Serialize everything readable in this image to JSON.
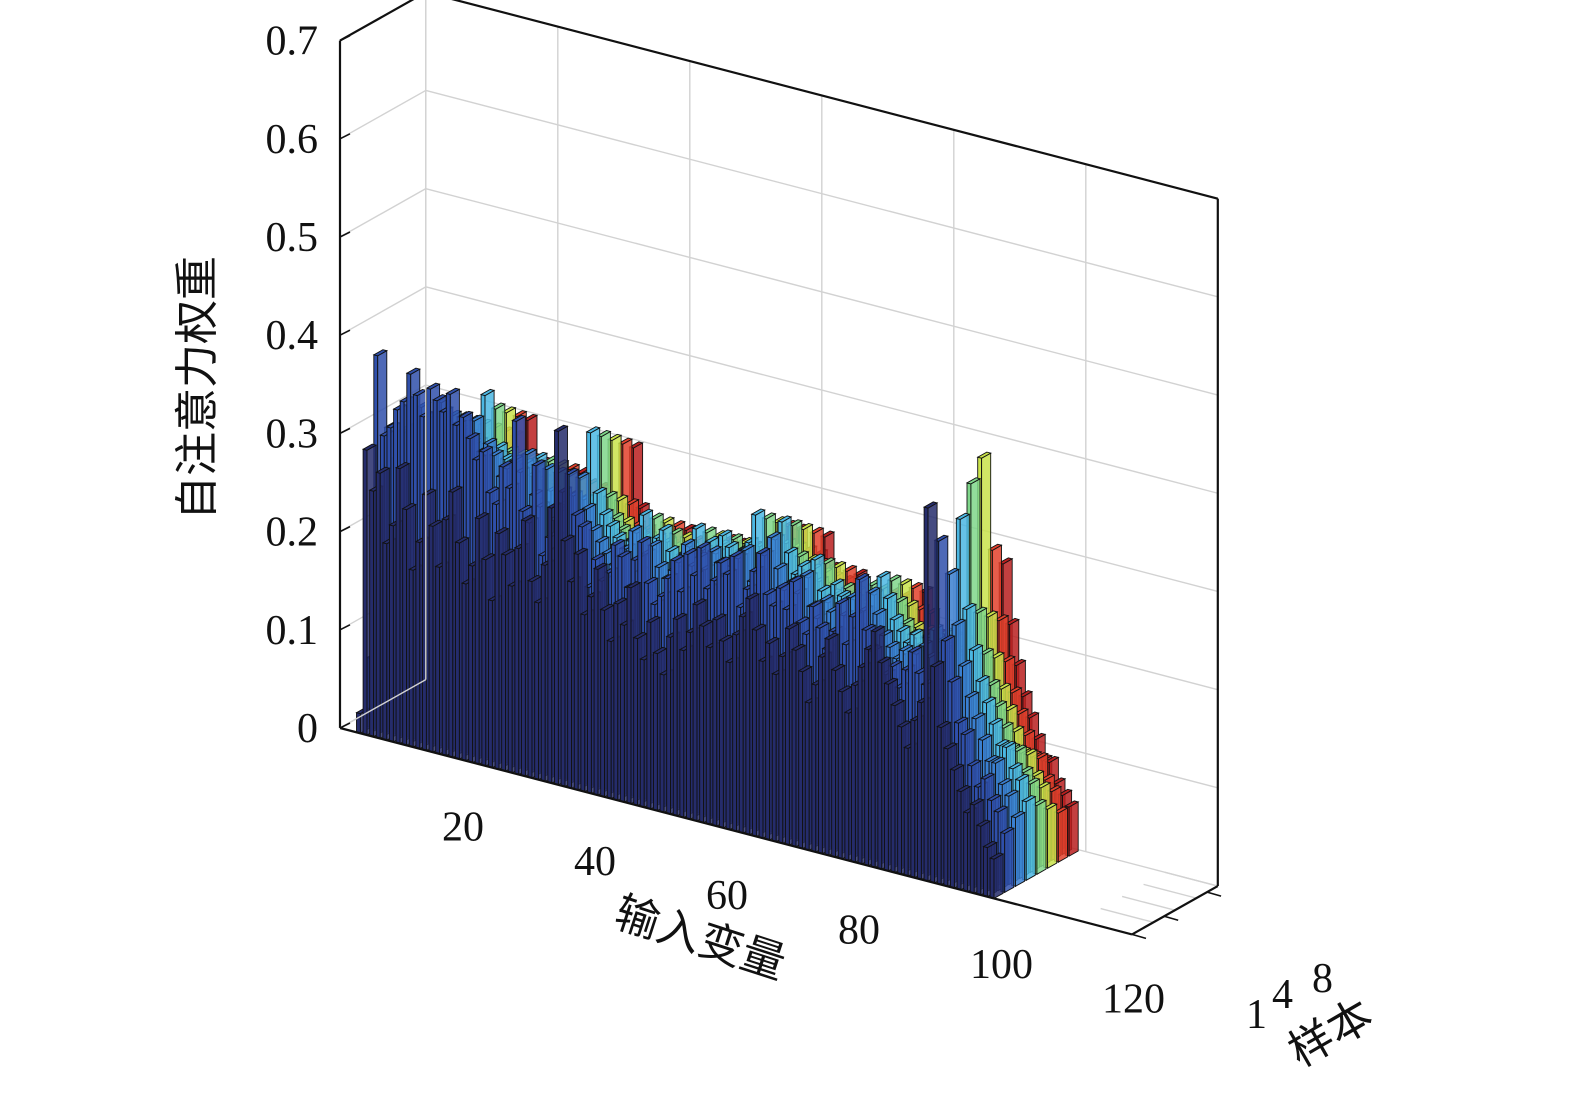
{
  "chart_data": {
    "type": "bar3d",
    "title": "",
    "xlabel": "输入变量",
    "ylabel": "样本",
    "zlabel": "自注意力权重",
    "x_ticks": [
      "20",
      "40",
      "60",
      "80",
      "100",
      "120"
    ],
    "y_ticks": [
      "1",
      "4",
      "8"
    ],
    "z_ticks": [
      "0",
      "0.1",
      "0.2",
      "0.3",
      "0.4",
      "0.5",
      "0.6",
      "0.7"
    ],
    "xlim": [
      0,
      120
    ],
    "ylim": [
      1,
      8
    ],
    "zlim": [
      0,
      0.7
    ],
    "grid": true,
    "colormap": [
      "#252c6b",
      "#2f4faa",
      "#3a7fd0",
      "#4bb7e3",
      "#7fd68a",
      "#c9e24a",
      "#f0a030",
      "#e2412c",
      "#b91f1f"
    ],
    "series": [
      {
        "sample": 1,
        "color": "#252c6b",
        "values": [
          0.02,
          0.29,
          0.25,
          0.27,
          0.2,
          0.22,
          0.28,
          0.24,
          0.18,
          0.21,
          0.26,
          0.23,
          0.19,
          0.24,
          0.27,
          0.22,
          0.18,
          0.2,
          0.25,
          0.21,
          0.17,
          0.24,
          0.22,
          0.19,
          0.23,
          0.26,
          0.2,
          0.18,
          0.22,
          0.28,
          0.36,
          0.25,
          0.21,
          0.24,
          0.18,
          0.2,
          0.23,
          0.19,
          0.16,
          0.2,
          0.18,
          0.22,
          0.17,
          0.15,
          0.19,
          0.16,
          0.14,
          0.18,
          0.2,
          0.17,
          0.19,
          0.22,
          0.2,
          0.18,
          0.21,
          0.19,
          0.17,
          0.2,
          0.22,
          0.24,
          0.21,
          0.18,
          0.2,
          0.17,
          0.19,
          0.22,
          0.2,
          0.18,
          0.15,
          0.17,
          0.2,
          0.22,
          0.19,
          0.17,
          0.15,
          0.18,
          0.2,
          0.22,
          0.24,
          0.21,
          0.19,
          0.17,
          0.15,
          0.13,
          0.16,
          0.18,
          0.38,
          0.22,
          0.16,
          0.14,
          0.12,
          0.1,
          0.08,
          0.09,
          0.07,
          0.05,
          0.04
        ]
      },
      {
        "sample": 2,
        "color": "#2f4faa",
        "values": [
          0.07,
          0.38,
          0.3,
          0.31,
          0.33,
          0.34,
          0.37,
          0.35,
          0.33,
          0.36,
          0.35,
          0.34,
          0.36,
          0.33,
          0.34,
          0.32,
          0.3,
          0.31,
          0.27,
          0.26,
          0.3,
          0.28,
          0.35,
          0.26,
          0.25,
          0.31,
          0.22,
          0.24,
          0.23,
          0.29,
          0.31,
          0.27,
          0.26,
          0.2,
          0.23,
          0.21,
          0.22,
          0.25,
          0.24,
          0.21,
          0.24,
          0.26,
          0.22,
          0.2,
          0.21,
          0.23,
          0.25,
          0.22,
          0.26,
          0.24,
          0.27,
          0.23,
          0.24,
          0.26,
          0.25,
          0.27,
          0.22,
          0.24,
          0.26,
          0.28,
          0.24,
          0.23,
          0.25,
          0.23,
          0.26,
          0.22,
          0.21,
          0.24,
          0.22,
          0.2,
          0.22,
          0.25,
          0.21,
          0.24,
          0.28,
          0.23,
          0.21,
          0.2,
          0.19,
          0.2,
          0.18,
          0.2,
          0.22,
          0.2,
          0.19,
          0.17,
          0.34,
          0.24,
          0.2,
          0.16,
          0.15,
          0.12,
          0.1,
          0.11,
          0.09,
          0.08,
          0.06
        ]
      },
      {
        "sample": 3,
        "color": "#3a7fd0",
        "values": [
          0.05,
          0.3,
          0.27,
          0.3,
          0.3,
          0.31,
          0.33,
          0.32,
          0.3,
          0.34,
          0.31,
          0.32,
          0.33,
          0.31,
          0.33,
          0.3,
          0.31,
          0.3,
          0.28,
          0.29,
          0.3,
          0.29,
          0.31,
          0.27,
          0.26,
          0.3,
          0.25,
          0.26,
          0.24,
          0.28,
          0.3,
          0.27,
          0.25,
          0.24,
          0.23,
          0.22,
          0.23,
          0.24,
          0.26,
          0.22,
          0.24,
          0.25,
          0.23,
          0.22,
          0.23,
          0.24,
          0.26,
          0.24,
          0.25,
          0.24,
          0.26,
          0.25,
          0.24,
          0.25,
          0.26,
          0.27,
          0.24,
          0.25,
          0.27,
          0.29,
          0.26,
          0.24,
          0.25,
          0.24,
          0.26,
          0.23,
          0.22,
          0.24,
          0.23,
          0.21,
          0.23,
          0.25,
          0.22,
          0.24,
          0.26,
          0.24,
          0.22,
          0.21,
          0.2,
          0.21,
          0.19,
          0.21,
          0.22,
          0.21,
          0.2,
          0.18,
          0.3,
          0.25,
          0.21,
          0.18,
          0.16,
          0.14,
          0.12,
          0.12,
          0.1,
          0.09,
          0.07
        ]
      },
      {
        "sample": 4,
        "color": "#4bb7e3",
        "values": [
          0.04,
          0.28,
          0.26,
          0.29,
          0.29,
          0.3,
          0.31,
          0.3,
          0.29,
          0.32,
          0.3,
          0.31,
          0.32,
          0.3,
          0.35,
          0.29,
          0.3,
          0.29,
          0.27,
          0.28,
          0.29,
          0.28,
          0.3,
          0.26,
          0.27,
          0.29,
          0.26,
          0.27,
          0.25,
          0.27,
          0.34,
          0.28,
          0.26,
          0.25,
          0.24,
          0.23,
          0.24,
          0.25,
          0.27,
          0.23,
          0.25,
          0.26,
          0.24,
          0.23,
          0.24,
          0.25,
          0.27,
          0.25,
          0.26,
          0.25,
          0.27,
          0.26,
          0.25,
          0.26,
          0.27,
          0.3,
          0.25,
          0.26,
          0.28,
          0.3,
          0.27,
          0.25,
          0.26,
          0.25,
          0.27,
          0.24,
          0.23,
          0.25,
          0.24,
          0.22,
          0.24,
          0.26,
          0.23,
          0.25,
          0.27,
          0.25,
          0.23,
          0.22,
          0.21,
          0.22,
          0.2,
          0.22,
          0.23,
          0.22,
          0.21,
          0.19,
          0.35,
          0.26,
          0.22,
          0.19,
          0.17,
          0.15,
          0.13,
          0.13,
          0.11,
          0.1,
          0.08
        ]
      },
      {
        "sample": 5,
        "color": "#7fd68a",
        "values": [
          0.03,
          0.26,
          0.25,
          0.28,
          0.28,
          0.29,
          0.3,
          0.29,
          0.28,
          0.31,
          0.29,
          0.3,
          0.31,
          0.29,
          0.33,
          0.28,
          0.29,
          0.28,
          0.26,
          0.27,
          0.28,
          0.27,
          0.29,
          0.25,
          0.26,
          0.28,
          0.25,
          0.26,
          0.24,
          0.26,
          0.33,
          0.27,
          0.25,
          0.24,
          0.23,
          0.22,
          0.23,
          0.24,
          0.26,
          0.22,
          0.24,
          0.25,
          0.23,
          0.22,
          0.23,
          0.24,
          0.26,
          0.24,
          0.25,
          0.24,
          0.26,
          0.25,
          0.24,
          0.25,
          0.26,
          0.29,
          0.24,
          0.25,
          0.27,
          0.29,
          0.26,
          0.24,
          0.25,
          0.24,
          0.26,
          0.23,
          0.22,
          0.24,
          0.23,
          0.21,
          0.23,
          0.25,
          0.22,
          0.24,
          0.26,
          0.24,
          0.22,
          0.21,
          0.2,
          0.21,
          0.19,
          0.21,
          0.22,
          0.21,
          0.2,
          0.18,
          0.38,
          0.25,
          0.21,
          0.18,
          0.16,
          0.14,
          0.12,
          0.12,
          0.1,
          0.09,
          0.07
        ]
      },
      {
        "sample": 6,
        "color": "#c9e24a",
        "values": [
          0.03,
          0.25,
          0.24,
          0.27,
          0.27,
          0.28,
          0.29,
          0.28,
          0.27,
          0.3,
          0.28,
          0.29,
          0.3,
          0.28,
          0.32,
          0.27,
          0.28,
          0.27,
          0.25,
          0.26,
          0.27,
          0.26,
          0.28,
          0.24,
          0.25,
          0.27,
          0.24,
          0.25,
          0.23,
          0.25,
          0.32,
          0.26,
          0.24,
          0.23,
          0.22,
          0.21,
          0.22,
          0.23,
          0.25,
          0.21,
          0.23,
          0.24,
          0.22,
          0.21,
          0.22,
          0.23,
          0.25,
          0.23,
          0.24,
          0.23,
          0.25,
          0.24,
          0.23,
          0.24,
          0.25,
          0.28,
          0.23,
          0.24,
          0.26,
          0.28,
          0.25,
          0.23,
          0.24,
          0.23,
          0.25,
          0.22,
          0.21,
          0.23,
          0.22,
          0.2,
          0.22,
          0.24,
          0.21,
          0.23,
          0.25,
          0.23,
          0.21,
          0.2,
          0.19,
          0.2,
          0.18,
          0.2,
          0.21,
          0.2,
          0.19,
          0.17,
          0.4,
          0.24,
          0.2,
          0.17,
          0.15,
          0.13,
          0.11,
          0.11,
          0.09,
          0.08,
          0.06
        ]
      },
      {
        "sample": 7,
        "color": "#e2412c",
        "values": [
          0.02,
          0.24,
          0.23,
          0.26,
          0.26,
          0.27,
          0.28,
          0.27,
          0.26,
          0.29,
          0.27,
          0.28,
          0.29,
          0.27,
          0.31,
          0.26,
          0.27,
          0.26,
          0.24,
          0.25,
          0.26,
          0.25,
          0.27,
          0.23,
          0.24,
          0.26,
          0.23,
          0.24,
          0.22,
          0.24,
          0.31,
          0.25,
          0.23,
          0.22,
          0.21,
          0.2,
          0.21,
          0.22,
          0.24,
          0.2,
          0.22,
          0.23,
          0.21,
          0.2,
          0.21,
          0.22,
          0.24,
          0.22,
          0.23,
          0.22,
          0.24,
          0.23,
          0.22,
          0.23,
          0.24,
          0.27,
          0.22,
          0.23,
          0.25,
          0.27,
          0.24,
          0.22,
          0.23,
          0.22,
          0.24,
          0.21,
          0.2,
          0.22,
          0.21,
          0.19,
          0.21,
          0.23,
          0.2,
          0.22,
          0.24,
          0.22,
          0.2,
          0.19,
          0.18,
          0.19,
          0.17,
          0.19,
          0.2,
          0.19,
          0.18,
          0.16,
          0.3,
          0.23,
          0.19,
          0.16,
          0.14,
          0.12,
          0.1,
          0.1,
          0.08,
          0.07,
          0.05
        ]
      },
      {
        "sample": 8,
        "color": "#b91f1f",
        "values": [
          0.02,
          0.23,
          0.22,
          0.25,
          0.25,
          0.26,
          0.27,
          0.26,
          0.25,
          0.28,
          0.26,
          0.27,
          0.28,
          0.26,
          0.3,
          0.25,
          0.26,
          0.25,
          0.23,
          0.24,
          0.25,
          0.24,
          0.26,
          0.22,
          0.23,
          0.25,
          0.22,
          0.23,
          0.21,
          0.23,
          0.3,
          0.24,
          0.22,
          0.21,
          0.2,
          0.19,
          0.2,
          0.21,
          0.23,
          0.19,
          0.21,
          0.22,
          0.2,
          0.19,
          0.2,
          0.21,
          0.23,
          0.21,
          0.22,
          0.21,
          0.23,
          0.22,
          0.21,
          0.22,
          0.23,
          0.26,
          0.21,
          0.22,
          0.24,
          0.26,
          0.23,
          0.21,
          0.22,
          0.21,
          0.23,
          0.2,
          0.19,
          0.21,
          0.2,
          0.18,
          0.2,
          0.22,
          0.19,
          0.21,
          0.23,
          0.21,
          0.19,
          0.18,
          0.17,
          0.18,
          0.16,
          0.18,
          0.19,
          0.18,
          0.17,
          0.15,
          0.28,
          0.22,
          0.18,
          0.15,
          0.13,
          0.11,
          0.09,
          0.09,
          0.07,
          0.06,
          0.05
        ]
      }
    ]
  }
}
